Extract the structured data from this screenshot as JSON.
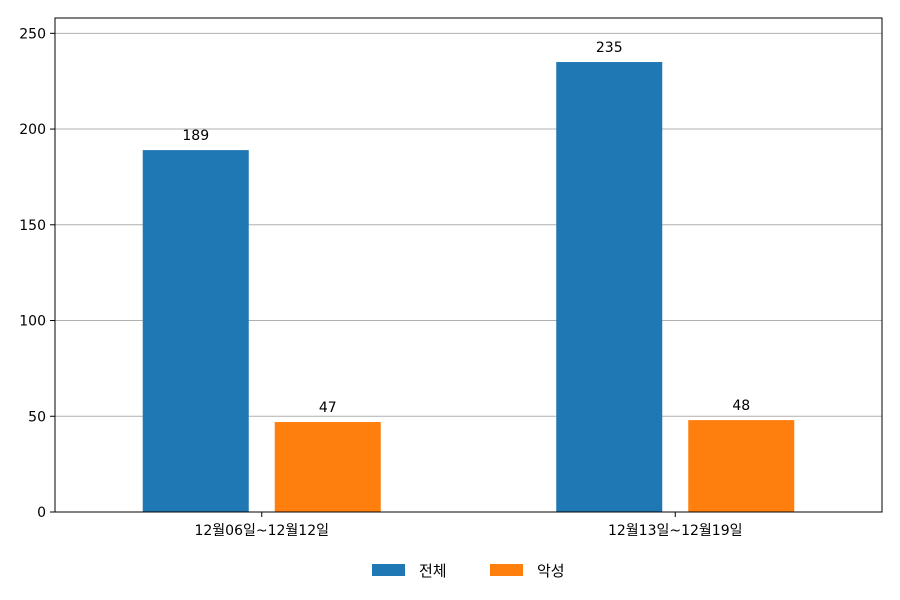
{
  "chart_data": {
    "type": "bar",
    "categories": [
      "12월06일~12월12일",
      "12월13일~12월19일"
    ],
    "series": [
      {
        "name": "전체",
        "values": [
          189,
          235
        ],
        "color": "#1f77b4"
      },
      {
        "name": "악성",
        "values": [
          47,
          48
        ],
        "color": "#ff7f0e"
      }
    ],
    "ylim": [
      0,
      258
    ],
    "yticks": [
      0,
      50,
      100,
      150,
      200,
      250
    ],
    "grid": true,
    "legend": "bottom-center"
  }
}
